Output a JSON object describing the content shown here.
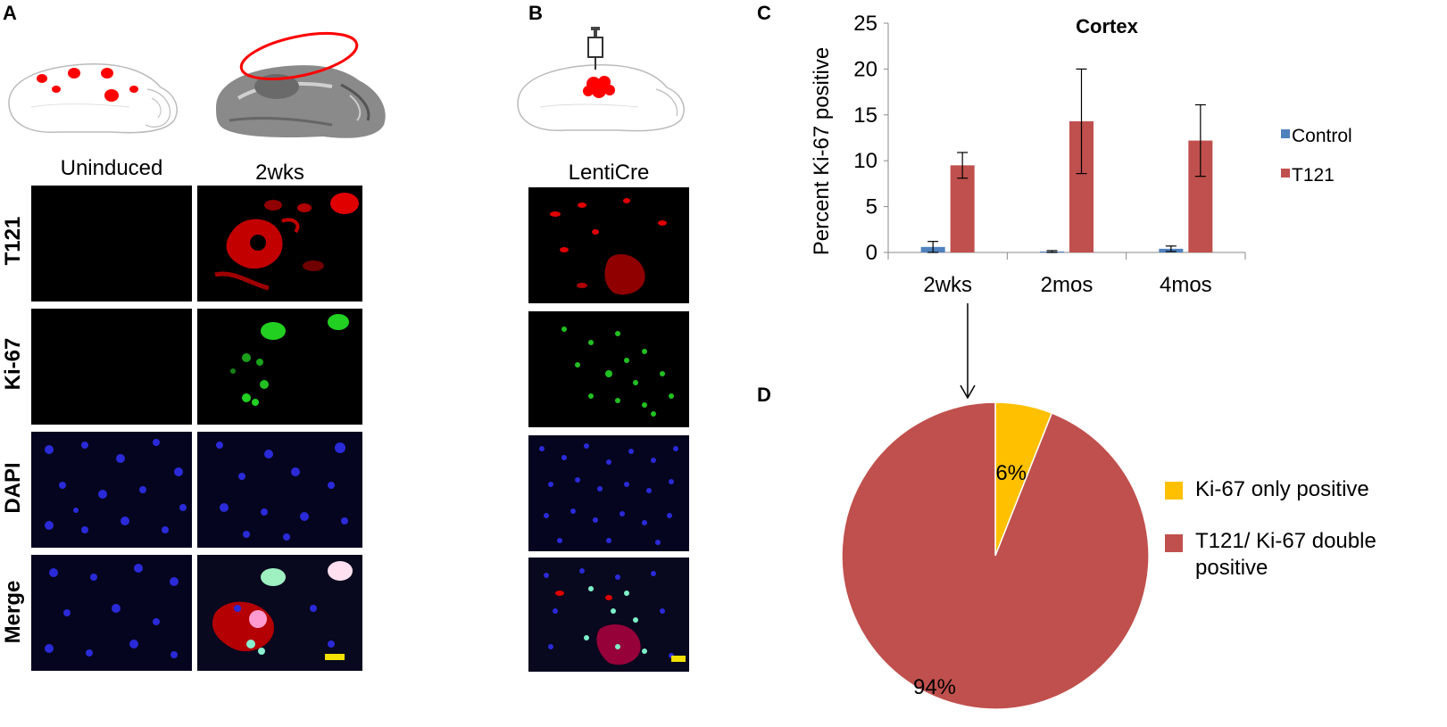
{
  "panels": {
    "A": {
      "letter": "A",
      "columns": [
        "Uninduced",
        "2wks"
      ],
      "rows": [
        "T121",
        "Ki-67",
        "DAPI",
        "Merge"
      ]
    },
    "B": {
      "letter": "B",
      "columns": [
        "LentiCre"
      ]
    },
    "C": {
      "letter": "C"
    },
    "D": {
      "letter": "D"
    }
  },
  "colors": {
    "control": "#4f81bd",
    "t121": "#c0504d",
    "ki67_only": "#ffc000",
    "scalebar": "#f2e000"
  },
  "chart_data": [
    {
      "type": "bar",
      "title": "Cortex",
      "ylabel": "Percent Ki-67 positive",
      "xlabel": "",
      "categories": [
        "2wks",
        "2mos",
        "4mos"
      ],
      "ylim": [
        0,
        25
      ],
      "yticks": [
        0,
        5,
        10,
        15,
        20,
        25
      ],
      "series": [
        {
          "name": "Control",
          "values": [
            0.6,
            0.1,
            0.4
          ],
          "errors": [
            0.6,
            0.1,
            0.3
          ],
          "color": "#4f81bd"
        },
        {
          "name": "T121",
          "values": [
            9.5,
            14.3,
            12.2
          ],
          "errors": [
            1.4,
            5.7,
            3.9
          ],
          "color": "#c0504d"
        }
      ],
      "legend_position": "right"
    },
    {
      "type": "pie",
      "slices": [
        {
          "label": "Ki-67 only positive",
          "value": 6,
          "display": "6%",
          "color": "#ffc000"
        },
        {
          "label": "T121/ Ki-67 double positive",
          "value": 94,
          "display": "94%",
          "color": "#c0504d"
        }
      ],
      "legend_position": "right"
    }
  ]
}
